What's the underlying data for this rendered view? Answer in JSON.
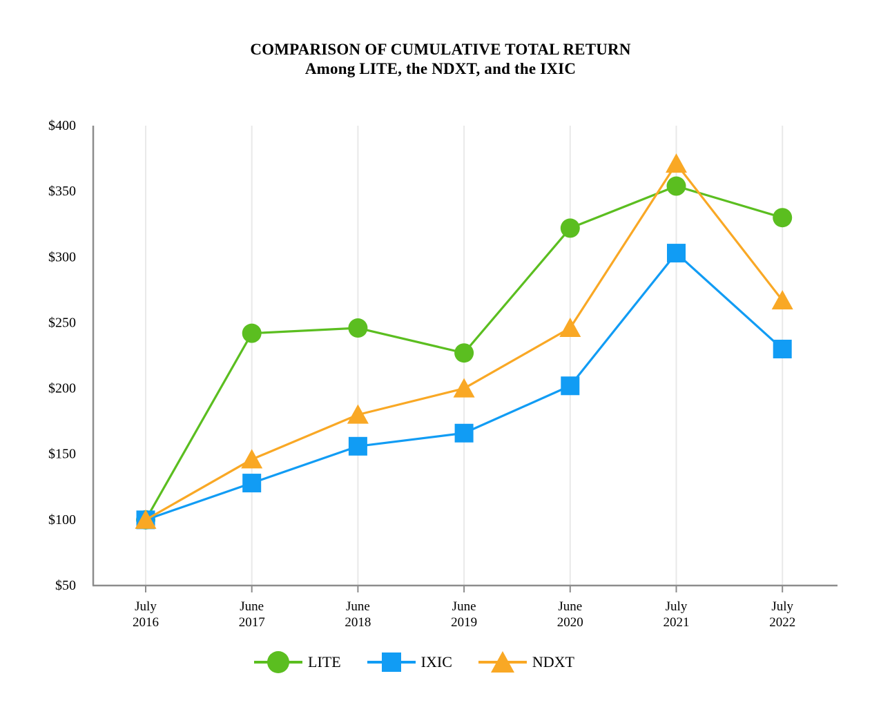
{
  "title": {
    "line1": "COMPARISON OF CUMULATIVE TOTAL RETURN",
    "line2": "Among LITE, the NDXT, and the IXIC"
  },
  "chart_data": {
    "type": "line",
    "title": "COMPARISON OF CUMULATIVE TOTAL RETURN Among LITE, the NDXT, and the IXIC",
    "categories": [
      {
        "month": "July",
        "year": "2016"
      },
      {
        "month": "June",
        "year": "2017"
      },
      {
        "month": "June",
        "year": "2018"
      },
      {
        "month": "June",
        "year": "2019"
      },
      {
        "month": "June",
        "year": "2020"
      },
      {
        "month": "July",
        "year": "2021"
      },
      {
        "month": "July",
        "year": "2022"
      }
    ],
    "series": [
      {
        "name": "LITE",
        "marker": "circle",
        "color": "#5BBE20",
        "values": [
          100,
          242,
          246,
          227,
          322,
          354,
          330
        ]
      },
      {
        "name": "IXIC",
        "marker": "square",
        "color": "#119CF4",
        "values": [
          100,
          128,
          156,
          166,
          202,
          303,
          230
        ]
      },
      {
        "name": "NDXT",
        "marker": "triangle",
        "color": "#F9A825",
        "values": [
          100,
          146,
          180,
          200,
          246,
          371,
          267
        ]
      }
    ],
    "y_axis": {
      "tick_labels": [
        "$400",
        "$350",
        "$300",
        "$250",
        "$200",
        "$150",
        "$100",
        "$50"
      ],
      "tick_values": [
        400,
        350,
        300,
        250,
        200,
        150,
        100,
        50
      ],
      "prefix": "$",
      "min": 50,
      "max": 400
    },
    "ylim": [
      50,
      400
    ],
    "grid": "vertical-only",
    "legend_position": "bottom",
    "colors": {
      "axis": "#8C8C8C",
      "grid": "#E9E9E9",
      "text": "#000000",
      "background": "#FFFFFF"
    }
  }
}
